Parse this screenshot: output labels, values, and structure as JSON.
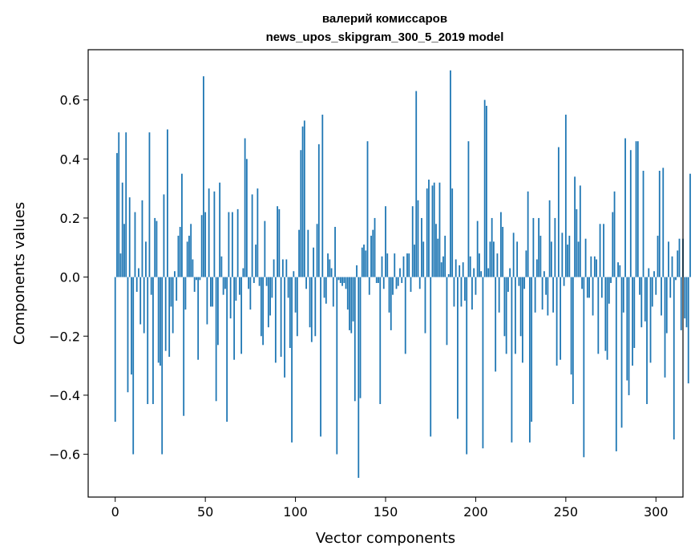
{
  "chart_data": {
    "type": "bar",
    "title_line1": "валерий комиссаров",
    "title_line2": "news_upos_skipgram_300_5_2019 model",
    "xlabel": "Vector components",
    "ylabel": "Components values",
    "xlim": [
      -15,
      315
    ],
    "ylim": [
      -0.745,
      0.77
    ],
    "xticks": [
      0,
      50,
      100,
      150,
      200,
      250,
      300
    ],
    "yticks": [
      -0.6,
      -0.4,
      -0.2,
      0.0,
      0.2,
      0.4,
      0.6
    ],
    "ytick_labels": [
      "−0.6",
      "−0.4",
      "−0.2",
      "0.0",
      "0.2",
      "0.4",
      "0.6"
    ],
    "grid": false,
    "bar_color": "#1f77b4",
    "x_start": 0,
    "values": [
      -0.49,
      0.42,
      0.49,
      0.08,
      0.32,
      0.18,
      0.49,
      -0.39,
      0.27,
      -0.33,
      -0.6,
      0.22,
      -0.05,
      0.03,
      -0.16,
      0.26,
      -0.19,
      0.12,
      -0.43,
      0.49,
      -0.06,
      -0.43,
      0.2,
      0.19,
      -0.29,
      -0.3,
      -0.6,
      0.28,
      -0.25,
      0.5,
      -0.27,
      -0.1,
      -0.19,
      0.02,
      -0.08,
      0.14,
      0.17,
      0.35,
      -0.47,
      -0.11,
      0.12,
      0.14,
      0.18,
      0.06,
      -0.05,
      -0.01,
      -0.28,
      -0.01,
      0.21,
      0.68,
      0.22,
      -0.16,
      0.3,
      -0.1,
      -0.1,
      0.29,
      -0.42,
      -0.23,
      0.32,
      0.07,
      -0.06,
      -0.04,
      -0.49,
      0.22,
      -0.14,
      0.22,
      -0.28,
      -0.08,
      0.23,
      -0.06,
      -0.26,
      0.03,
      0.47,
      0.4,
      -0.04,
      -0.11,
      0.28,
      -0.02,
      0.11,
      0.3,
      -0.03,
      -0.2,
      -0.23,
      0.19,
      -0.03,
      -0.17,
      -0.13,
      -0.07,
      0.06,
      -0.29,
      0.24,
      0.23,
      -0.27,
      0.06,
      -0.34,
      0.06,
      -0.07,
      -0.24,
      -0.56,
      0.02,
      -0.12,
      -0.2,
      0.16,
      0.43,
      0.51,
      0.53,
      -0.04,
      0.16,
      -0.17,
      -0.22,
      0.1,
      -0.2,
      0.18,
      0.45,
      -0.54,
      0.55,
      -0.07,
      -0.09,
      0.08,
      0.06,
      0.03,
      -0.1,
      0.17,
      -0.6,
      -0.01,
      -0.02,
      -0.03,
      -0.02,
      -0.04,
      -0.11,
      -0.18,
      -0.19,
      -0.15,
      -0.42,
      0.04,
      -0.68,
      -0.41,
      0.1,
      0.11,
      0.09,
      0.46,
      -0.06,
      0.14,
      0.16,
      0.2,
      -0.02,
      -0.02,
      -0.43,
      0.07,
      -0.04,
      0.24,
      0.08,
      -0.12,
      -0.18,
      -0.06,
      0.08,
      -0.04,
      -0.03,
      0.03,
      -0.02,
      0.07,
      -0.26,
      0.08,
      0.08,
      -0.05,
      0.24,
      0.11,
      0.63,
      0.26,
      -0.04,
      0.2,
      0.12,
      -0.19,
      0.3,
      0.33,
      -0.54,
      0.31,
      0.32,
      0.18,
      0.13,
      0.32,
      0.05,
      0.07,
      0.14,
      -0.23,
      0.01,
      0.7,
      0.3,
      -0.1,
      0.06,
      -0.48,
      0.04,
      -0.1,
      0.05,
      -0.08,
      -0.6,
      0.46,
      0.07,
      -0.11,
      0.03,
      -0.06,
      0.19,
      0.08,
      0.02,
      -0.58,
      0.6,
      0.58,
      0.03,
      0.12,
      0.2,
      0.12,
      -0.32,
      0.08,
      -0.12,
      0.22,
      0.17,
      -0.2,
      -0.26,
      -0.05,
      0.03,
      -0.56,
      0.15,
      -0.26,
      0.12,
      -0.03,
      -0.2,
      -0.29,
      -0.04,
      0.09,
      0.29,
      -0.56,
      -0.49,
      0.2,
      -0.12,
      0.06,
      0.2,
      0.14,
      -0.11,
      0.02,
      -0.06,
      -0.13,
      0.26,
      0.12,
      -0.12,
      0.2,
      -0.3,
      0.44,
      -0.28,
      0.15,
      -0.03,
      0.55,
      0.11,
      0.14,
      -0.33,
      -0.43,
      0.34,
      0.23,
      0.12,
      0.31,
      -0.04,
      -0.61,
      0.13,
      -0.07,
      -0.07,
      0.07,
      -0.13,
      0.07,
      0.06,
      -0.26,
      0.18,
      -0.07,
      0.18,
      -0.25,
      -0.28,
      -0.09,
      -0.02,
      0.22,
      0.29,
      -0.59,
      0.05,
      0.04,
      -0.51,
      -0.12,
      0.47,
      -0.35,
      -0.4,
      0.43,
      -0.3,
      -0.24,
      0.46,
      0.46,
      -0.06,
      -0.17,
      0.36,
      -0.15,
      -0.43,
      0.03,
      -0.29,
      -0.1,
      0.02,
      -0.06,
      0.14,
      0.36,
      -0.13,
      0.37,
      -0.34,
      -0.19,
      0.12,
      -0.07,
      0.07,
      -0.55,
      -0.01,
      0.09,
      0.13,
      -0.18,
      0.13,
      -0.14,
      -0.17,
      -0.36,
      0.35
    ]
  }
}
